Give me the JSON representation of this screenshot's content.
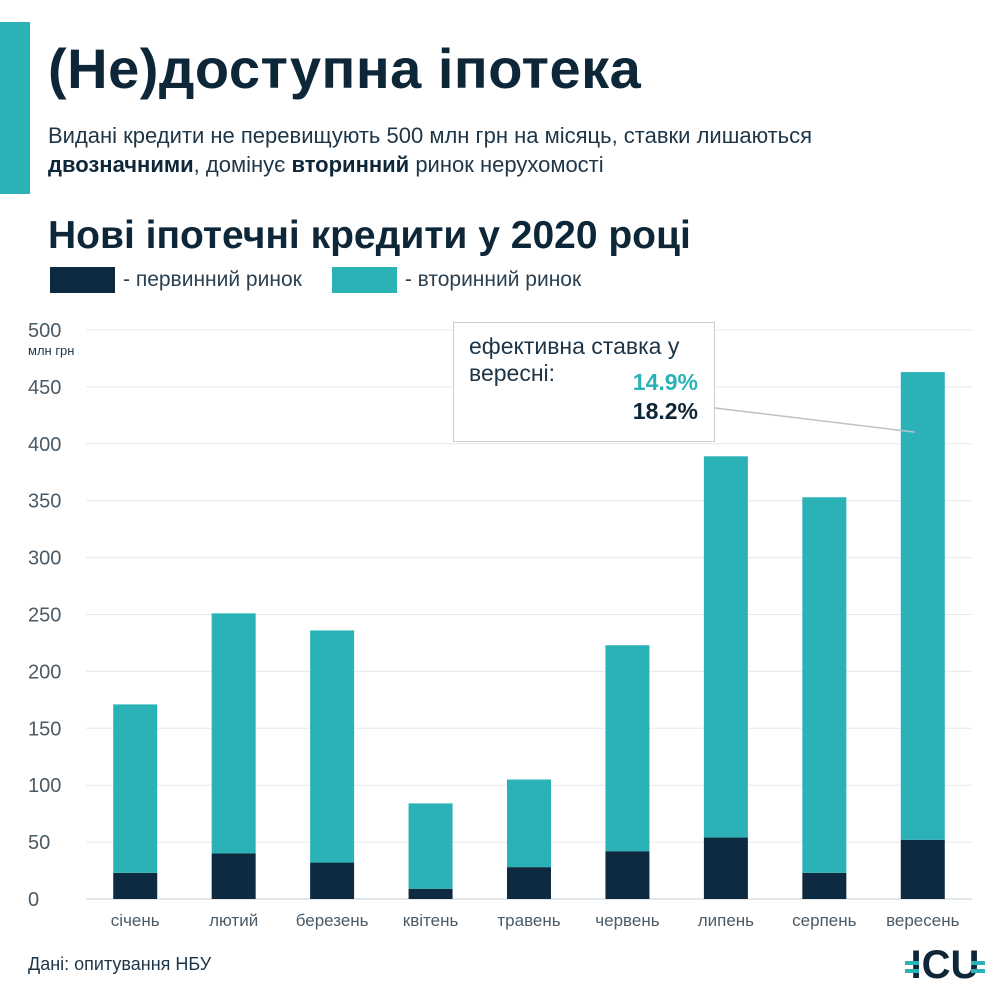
{
  "header": {
    "title": "(Не)доступна іпотека",
    "subtitle_parts": [
      {
        "text": "Видані кредити не перевищують ",
        "bold": false
      },
      {
        "text": "500 млн грн",
        "bold": false
      },
      {
        "text": " на місяць, ставки лишаються ",
        "bold": false
      },
      {
        "text": "двозначними",
        "bold": true
      },
      {
        "text": ", домінує ",
        "bold": false
      },
      {
        "text": "вторинний",
        "bold": true
      },
      {
        "text": " ринок нерухомості",
        "bold": false
      }
    ]
  },
  "legend": {
    "primary": "- первинний ринок",
    "secondary": "- вторинний ринок"
  },
  "callout": {
    "label": "ефективна ставка у вересні:",
    "value_secondary": "14.9%",
    "value_primary": "18.2%"
  },
  "source": "Дані: опитування НБУ",
  "logo_text": "ICU",
  "colors": {
    "primary": "#0d2a40",
    "secondary": "#2bb2b7",
    "grid": "#e6e9eb",
    "axis_text": "#4a5a66"
  },
  "chart_data": {
    "type": "bar",
    "stacked": true,
    "title": "Нові іпотечні кредити у 2020 році",
    "ylabel": "млн грн",
    "xlabel": "",
    "ylim": [
      0,
      500
    ],
    "yticks": [
      0,
      50,
      100,
      150,
      200,
      250,
      300,
      350,
      400,
      450,
      500
    ],
    "grid": true,
    "legend_position": "top-left",
    "categories": [
      "січень",
      "лютий",
      "березень",
      "квітень",
      "травень",
      "червень",
      "липень",
      "серпень",
      "вересень"
    ],
    "series": [
      {
        "name": "первинний ринок",
        "values": [
          23,
          40,
          32,
          9,
          28,
          42,
          54,
          23,
          52
        ]
      },
      {
        "name": "вторинний ринок",
        "values": [
          148,
          211,
          204,
          75,
          77,
          181,
          335,
          330,
          411
        ]
      }
    ]
  }
}
